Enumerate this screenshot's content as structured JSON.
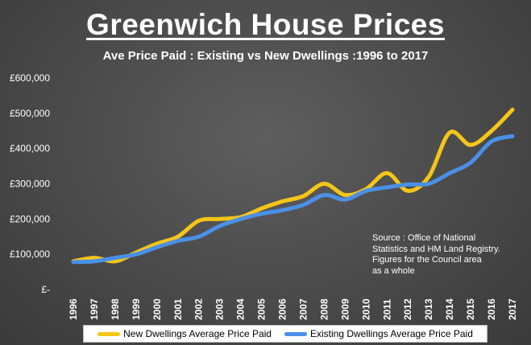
{
  "header": {
    "title": "Greenwich House Prices",
    "subtitle": "Ave Price Paid : Existing vs New Dwellings :1996 to 2017"
  },
  "source_note": {
    "lines": [
      "Source : Office of National",
      "Statistics and HM Land Registry.",
      "Figures for the Council area",
      "as a whole"
    ]
  },
  "colors": {
    "new_dwellings": "#f5c518",
    "existing_dwellings": "#4a90e8",
    "axis_text": "#ffffff"
  },
  "chart_data": {
    "type": "line",
    "title": "Greenwich House Prices",
    "subtitle": "Ave Price Paid : Existing vs New Dwellings :1996 to 2017",
    "xlabel": "",
    "ylabel": "",
    "x": [
      "1996",
      "1997",
      "1998",
      "1999",
      "2000",
      "2001",
      "2002",
      "2003",
      "2004",
      "2005",
      "2006",
      "2007",
      "2008",
      "2009",
      "2010",
      "2011",
      "2012",
      "2013",
      "2014",
      "2015",
      "2016",
      "2017"
    ],
    "ylim": [
      0,
      600000
    ],
    "yticks": [
      0,
      100000,
      200000,
      300000,
      400000,
      500000,
      600000
    ],
    "ytick_labels": [
      "£-",
      "£100,000",
      "£200,000",
      "£300,000",
      "£400,000",
      "£500,000",
      "£600,000"
    ],
    "grid": false,
    "legend_position": "bottom",
    "series": [
      {
        "name": "New Dwellings Average Price Paid",
        "color": "#f5c518",
        "values": [
          80000,
          90000,
          80000,
          105000,
          130000,
          150000,
          195000,
          200000,
          205000,
          230000,
          250000,
          265000,
          300000,
          268000,
          285000,
          330000,
          280000,
          320000,
          445000,
          410000,
          450000,
          510000
        ]
      },
      {
        "name": "Existing Dwellings Average Price Paid",
        "color": "#4a90e8",
        "values": [
          78000,
          80000,
          90000,
          100000,
          120000,
          138000,
          150000,
          180000,
          200000,
          215000,
          225000,
          240000,
          268000,
          255000,
          280000,
          290000,
          298000,
          300000,
          330000,
          360000,
          420000,
          435000
        ]
      }
    ]
  }
}
